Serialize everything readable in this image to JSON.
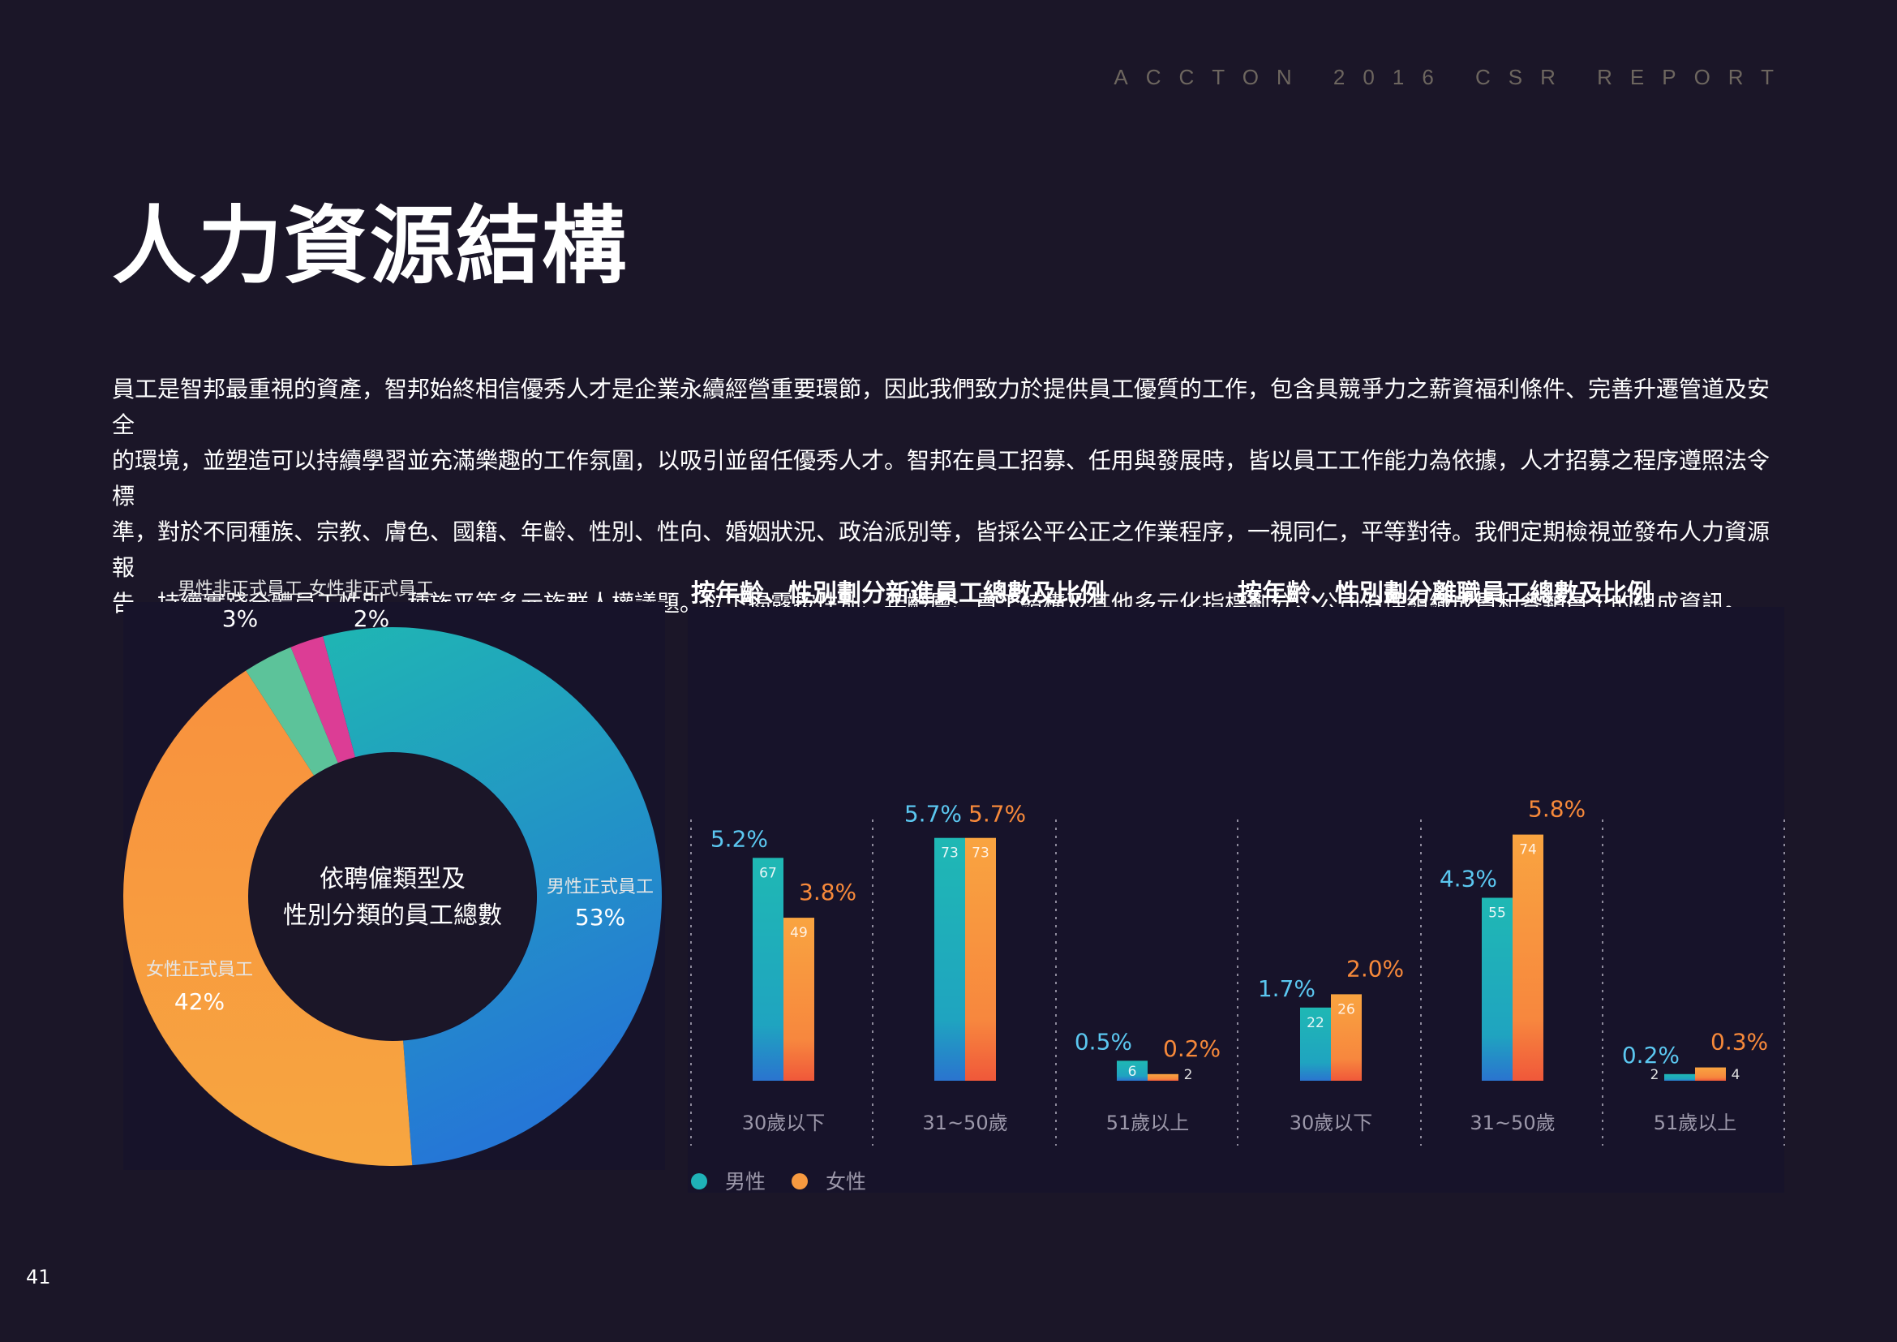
{
  "header": {
    "report_title": "ACCTON 2016 CSR REPORT"
  },
  "page": {
    "title": "人力資源結構",
    "page_number": "41",
    "intro_lines": [
      "員工是智邦最重視的資產，智邦始終相信優秀人才是企業永續經營重要環節，因此我們致力於提供員工優質的工作，包含具競爭力之薪資福利條件、完善升遷管道及安全",
      "的環境，並塑造可以持續學習並充滿樂趣的工作氛圍，以吸引並留任優秀人才。智邦在員工招募、任用與發展時，皆以員工工作能力為依據，人才招募之程序遵照法令標",
      "準，對於不同種族、宗教、膚色、國籍、年齡、性別、性向、婚姻狀況、政治派別等，皆採公平公正之作業程序，一視同仁，平等對待。我們定期檢視並發布人力資源報",
      "告，持續實踐全體員工性別、種族平等多元族群人權議題。以下揭露按性別、年齡層、員工結構及其他多元化指標劃分，公司治理組織成員和各類員工的組成資訊。"
    ]
  },
  "chart_data": [
    {
      "type": "pie",
      "title": "依聘僱類型及性別分類的員工總數",
      "title_lines": [
        "依聘僱類型及",
        "性別分類的員工總數"
      ],
      "slices": [
        {
          "label": "男性正式員工",
          "value": 53,
          "display": "53%",
          "color": "#1f9fc7"
        },
        {
          "label": "女性正式員工",
          "value": 42,
          "display": "42%",
          "color": "#f4943f"
        },
        {
          "label": "男性非正式員工",
          "value": 3,
          "display": "3%",
          "color": "#5cc39a"
        },
        {
          "label": "女性非正式員工",
          "value": 2,
          "display": "2%",
          "color": "#dc3d95"
        }
      ]
    },
    {
      "type": "bar",
      "title": "按年齡、性別劃分新進員工總數及比例",
      "categories": [
        "30歲以下",
        "31~50歲",
        "51歲以上"
      ],
      "series": [
        {
          "name": "男性",
          "values": [
            67,
            73,
            6
          ],
          "labels": [
            "5.2%",
            "5.7%",
            "0.5%"
          ],
          "color": "#1fb2b7"
        },
        {
          "name": "女性",
          "values": [
            49,
            73,
            2
          ],
          "labels": [
            "3.8%",
            "5.7%",
            "0.2%"
          ],
          "color": "#f79a40"
        }
      ],
      "ylim": [
        0,
        80
      ]
    },
    {
      "type": "bar",
      "title": "按年齡、性別劃分離職員工總數及比例",
      "categories": [
        "30歲以下",
        "31~50歲",
        "51歲以上"
      ],
      "series": [
        {
          "name": "男性",
          "values": [
            22,
            55,
            2
          ],
          "labels": [
            "1.7%",
            "4.3%",
            "0.2%"
          ],
          "color": "#1fb2b7"
        },
        {
          "name": "女性",
          "values": [
            26,
            74,
            4
          ],
          "labels": [
            "2.0%",
            "5.8%",
            "0.3%"
          ],
          "color": "#f79a40"
        }
      ],
      "ylim": [
        0,
        80
      ]
    }
  ],
  "legend": [
    {
      "name": "男性",
      "color": "#1fb2b7"
    },
    {
      "name": "女性",
      "color": "#f79a40"
    }
  ],
  "colors": {
    "background": "#1b1628",
    "male_pct_text": "#5bc7f0",
    "female_pct_text": "#f7893a"
  }
}
